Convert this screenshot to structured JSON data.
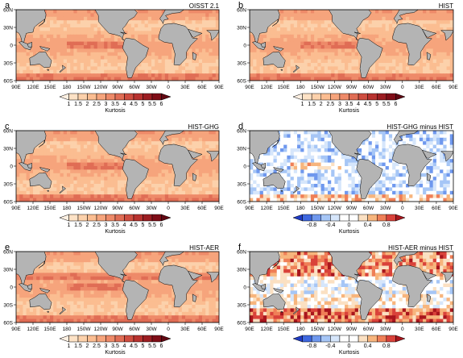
{
  "chart_data": [
    {
      "type": "heatmap",
      "letter": "a",
      "title": "OISST 2.1",
      "kind": "kurtosis",
      "colorbar_label": "Kurtosis",
      "colorbar_ticks": [
        "1",
        "1.5",
        "2",
        "2.5",
        "3",
        "3.5",
        "4",
        "4.5",
        "5",
        "5.5",
        "6"
      ],
      "x_ticks": [
        "90E",
        "120E",
        "150E",
        "180",
        "150W",
        "120W",
        "90W",
        "60W",
        "30W",
        "0",
        "30E",
        "60E",
        "90E"
      ],
      "y_ticks": [
        "60N",
        "30N",
        "0",
        "30S",
        "60S"
      ],
      "xlim": [
        90,
        450
      ],
      "ylim": [
        -60,
        60
      ]
    },
    {
      "type": "heatmap",
      "letter": "b",
      "title": "HIST",
      "kind": "kurtosis",
      "colorbar_label": "Kurtosis",
      "colorbar_ticks": [
        "1",
        "1.5",
        "2",
        "2.5",
        "3",
        "3.5",
        "4",
        "4.5",
        "5",
        "5.5",
        "6"
      ],
      "x_ticks": [
        "90E",
        "120E",
        "150E",
        "180",
        "150W",
        "120W",
        "90W",
        "60W",
        "30W",
        "0",
        "30E",
        "60E",
        "90E"
      ],
      "y_ticks": [
        "60N",
        "30N",
        "0",
        "30S",
        "60S"
      ],
      "xlim": [
        90,
        450
      ],
      "ylim": [
        -60,
        60
      ]
    },
    {
      "type": "heatmap",
      "letter": "c",
      "title": "HIST-GHG",
      "kind": "kurtosis",
      "colorbar_label": "Kurtosis",
      "colorbar_ticks": [
        "1",
        "1.5",
        "2",
        "2.5",
        "3",
        "3.5",
        "4",
        "4.5",
        "5",
        "5.5",
        "6"
      ],
      "x_ticks": [
        "90E",
        "120E",
        "150E",
        "180",
        "150W",
        "120W",
        "90W",
        "60W",
        "30W",
        "0",
        "30E",
        "60E",
        "90E"
      ],
      "y_ticks": [
        "60N",
        "30N",
        "0",
        "30S",
        "60S"
      ],
      "xlim": [
        90,
        450
      ],
      "ylim": [
        -60,
        60
      ]
    },
    {
      "type": "heatmap",
      "letter": "d",
      "title": "HIST-GHG minus HIST",
      "kind": "diff",
      "colorbar_label": "Kurtosis",
      "colorbar_ticks": [
        "-0.8",
        "-0.4",
        "0",
        "0.4",
        "0.8"
      ],
      "x_ticks": [
        "90E",
        "120E",
        "150E",
        "180",
        "150W",
        "120W",
        "90W",
        "60W",
        "30W",
        "0",
        "30E",
        "60E",
        "90E"
      ],
      "y_ticks": [
        "60N",
        "30N",
        "0",
        "30S",
        "60S"
      ],
      "xlim": [
        90,
        450
      ],
      "ylim": [
        -60,
        60
      ]
    },
    {
      "type": "heatmap",
      "letter": "e",
      "title": "HIST-AER",
      "kind": "kurtosis",
      "colorbar_label": "Kurtosis",
      "colorbar_ticks": [
        "1",
        "1.5",
        "2",
        "2.5",
        "3",
        "3.5",
        "4",
        "4.5",
        "5",
        "5.5",
        "6"
      ],
      "x_ticks": [
        "90E",
        "120E",
        "150E",
        "180",
        "150W",
        "120W",
        "90W",
        "60W",
        "30W",
        "0",
        "30E",
        "60E",
        "90E"
      ],
      "y_ticks": [
        "60N",
        "30N",
        "0",
        "30S",
        "60S"
      ],
      "xlim": [
        90,
        450
      ],
      "ylim": [
        -60,
        60
      ]
    },
    {
      "type": "heatmap",
      "letter": "f",
      "title": "HIST-AER minus HIST",
      "kind": "diff",
      "colorbar_label": "Kurtosis",
      "colorbar_ticks": [
        "-0.8",
        "-0.4",
        "0",
        "0.4",
        "0.8"
      ],
      "x_ticks": [
        "90E",
        "120E",
        "150E",
        "180",
        "150W",
        "120W",
        "90W",
        "60W",
        "30W",
        "0",
        "30E",
        "60E",
        "90E"
      ],
      "y_ticks": [
        "60N",
        "30N",
        "0",
        "30S",
        "60S"
      ],
      "xlim": [
        90,
        450
      ],
      "ylim": [
        -60,
        60
      ]
    }
  ],
  "colors": {
    "land": "#b4b4b4",
    "kurtosis_scale": [
      "#fdf0e2",
      "#fde2c6",
      "#fcd1ab",
      "#fbbd91",
      "#f6a47c",
      "#ee8a69",
      "#e06d55",
      "#cf4d40",
      "#b8322f",
      "#9c1d22",
      "#7f0d17",
      "#600812"
    ],
    "diff_scale": [
      "#1f3bc4",
      "#3d67df",
      "#6f98ee",
      "#a6c6f6",
      "#d6e6fb",
      "#ffffff",
      "#ffffff",
      "#fbe0c2",
      "#f7b57d",
      "#ef7f57",
      "#d9423a",
      "#a9161d"
    ]
  }
}
